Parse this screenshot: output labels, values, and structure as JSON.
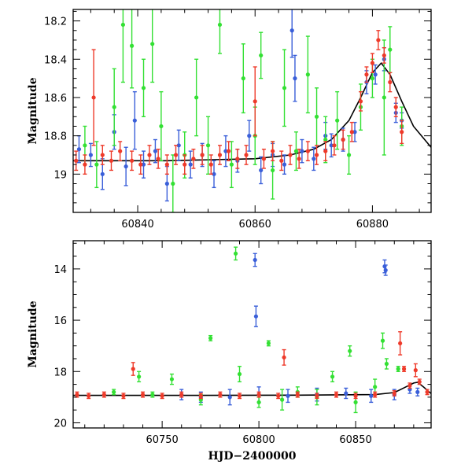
{
  "chart_data": [
    {
      "type": "scatter",
      "panel": "top",
      "title": "",
      "xlabel": "",
      "ylabel": "Magnitude",
      "xlim": [
        60829,
        60890
      ],
      "ylim": [
        19.2,
        18.14
      ],
      "y_inverted": true,
      "xticks": [
        60840,
        60860,
        60880
      ],
      "yticks": [
        18.2,
        18.4,
        18.6,
        18.8,
        19
      ],
      "ytick_labels": [
        "18.2",
        "18.4",
        "18.6",
        "18.8",
        "19"
      ],
      "grid": false,
      "legend": "none",
      "series": [
        {
          "color": "#3a5fd9",
          "points": [
            [
              60830,
              18.87,
              0.07
            ],
            [
              60832,
              18.9,
              0.06
            ],
            [
              60834,
              19.0,
              0.08
            ],
            [
              60836,
              18.78,
              0.09
            ],
            [
              60838,
              18.96,
              0.1
            ],
            [
              60839.5,
              18.72,
              0.15
            ],
            [
              60841,
              18.95,
              0.07
            ],
            [
              60843,
              18.88,
              0.06
            ],
            [
              60845,
              19.05,
              0.09
            ],
            [
              60847,
              18.85,
              0.08
            ],
            [
              60849,
              18.95,
              0.07
            ],
            [
              60851,
              18.9,
              0.06
            ],
            [
              60853,
              19.0,
              0.07
            ],
            [
              60855,
              18.88,
              0.08
            ],
            [
              60857,
              18.93,
              0.06
            ],
            [
              60859,
              18.8,
              0.08
            ],
            [
              60861,
              18.98,
              0.07
            ],
            [
              60863,
              18.9,
              0.06
            ],
            [
              60865,
              18.95,
              0.05
            ],
            [
              60866.3,
              18.25,
              0.14
            ],
            [
              60866.8,
              18.5,
              0.12
            ],
            [
              60868,
              18.88,
              0.06
            ],
            [
              60870,
              18.92,
              0.06
            ],
            [
              60872,
              18.8,
              0.07
            ],
            [
              60873,
              18.85,
              0.06
            ],
            [
              60875,
              18.82,
              0.06
            ],
            [
              60877,
              18.78,
              0.05
            ],
            [
              60879,
              18.52,
              0.06
            ],
            [
              60880.5,
              18.48,
              0.05
            ],
            [
              60882,
              18.4,
              0.06
            ],
            [
              60884,
              18.68,
              0.05
            ],
            [
              60885,
              18.72,
              0.04
            ]
          ]
        },
        {
          "color": "#33e033",
          "points": [
            [
              60831,
              18.85,
              0.1
            ],
            [
              60833,
              18.95,
              0.12
            ],
            [
              60836,
              18.65,
              0.2
            ],
            [
              60837.5,
              18.22,
              0.3
            ],
            [
              60839,
              18.33,
              0.22
            ],
            [
              60841,
              18.55,
              0.15
            ],
            [
              60842.5,
              18.32,
              0.2
            ],
            [
              60844,
              18.75,
              0.18
            ],
            [
              60846,
              19.05,
              0.15
            ],
            [
              60848,
              18.9,
              0.12
            ],
            [
              60850,
              18.6,
              0.2
            ],
            [
              60852,
              18.85,
              0.15
            ],
            [
              60854,
              18.22,
              0.15
            ],
            [
              60856,
              18.95,
              0.12
            ],
            [
              60858,
              18.5,
              0.18
            ],
            [
              60860,
              18.8,
              0.15
            ],
            [
              60861,
              18.38,
              0.12
            ],
            [
              60863,
              18.98,
              0.15
            ],
            [
              60865,
              18.55,
              0.2
            ],
            [
              60867,
              18.88,
              0.1
            ],
            [
              60869,
              18.48,
              0.2
            ],
            [
              60870.5,
              18.7,
              0.15
            ],
            [
              60872,
              18.82,
              0.12
            ],
            [
              60874,
              18.72,
              0.15
            ],
            [
              60876,
              18.9,
              0.1
            ],
            [
              60878,
              18.65,
              0.12
            ],
            [
              60880,
              18.5,
              0.1
            ],
            [
              60882,
              18.6,
              0.3
            ],
            [
              60883,
              18.35,
              0.12
            ],
            [
              60885,
              18.75,
              0.1
            ]
          ]
        },
        {
          "color": "#ee3a2a",
          "points": [
            [
              60829.5,
              18.93,
              0.05
            ],
            [
              60831,
              18.95,
              0.05
            ],
            [
              60832.5,
              18.6,
              0.25
            ],
            [
              60834,
              18.9,
              0.05
            ],
            [
              60835.5,
              18.93,
              0.05
            ],
            [
              60837,
              18.88,
              0.05
            ],
            [
              60839,
              18.93,
              0.05
            ],
            [
              60840.5,
              18.95,
              0.05
            ],
            [
              60842,
              18.9,
              0.05
            ],
            [
              60843.5,
              18.92,
              0.05
            ],
            [
              60845,
              18.95,
              0.05
            ],
            [
              60846.5,
              18.9,
              0.05
            ],
            [
              60848,
              18.95,
              0.05
            ],
            [
              60849.5,
              18.92,
              0.05
            ],
            [
              60851,
              18.9,
              0.05
            ],
            [
              60852.5,
              18.95,
              0.05
            ],
            [
              60854,
              18.9,
              0.05
            ],
            [
              60855.5,
              18.88,
              0.05
            ],
            [
              60857,
              18.92,
              0.05
            ],
            [
              60858.5,
              18.9,
              0.05
            ],
            [
              60860,
              18.62,
              0.18
            ],
            [
              60861.5,
              18.92,
              0.05
            ],
            [
              60863,
              18.88,
              0.05
            ],
            [
              60864.5,
              18.93,
              0.05
            ],
            [
              60866,
              18.9,
              0.05
            ],
            [
              60867.5,
              18.92,
              0.05
            ],
            [
              60869,
              18.88,
              0.05
            ],
            [
              60870.5,
              18.9,
              0.05
            ],
            [
              60872,
              18.88,
              0.05
            ],
            [
              60873.5,
              18.85,
              0.05
            ],
            [
              60875,
              18.82,
              0.05
            ],
            [
              60876.5,
              18.78,
              0.05
            ],
            [
              60878,
              18.62,
              0.05
            ],
            [
              60879,
              18.48,
              0.04
            ],
            [
              60880,
              18.42,
              0.05
            ],
            [
              60881,
              18.3,
              0.05
            ],
            [
              60882,
              18.38,
              0.04
            ],
            [
              60883,
              18.52,
              0.05
            ],
            [
              60884,
              18.65,
              0.05
            ],
            [
              60885,
              18.78,
              0.06
            ]
          ]
        }
      ],
      "model_curve": {
        "color": "#000000",
        "x": [
          60829,
          60845,
          60860,
          60866,
          60870,
          60873,
          60876,
          60878,
          60880,
          60881.5,
          60883,
          60885,
          60887,
          60890
        ],
        "y": [
          18.93,
          18.93,
          18.92,
          18.9,
          18.87,
          18.82,
          18.72,
          18.6,
          18.47,
          18.42,
          18.48,
          18.62,
          18.75,
          18.86
        ]
      }
    },
    {
      "type": "scatter",
      "panel": "bottom",
      "title": "",
      "xlabel": "HJD−2400000",
      "ylabel": "Magnitude",
      "xlim": [
        60704,
        60889
      ],
      "ylim": [
        20.2,
        12.9
      ],
      "y_inverted": true,
      "xticks": [
        60750,
        60800,
        60850
      ],
      "yticks": [
        14,
        16,
        18,
        20
      ],
      "grid": false,
      "legend": "none",
      "series": [
        {
          "color": "#3a5fd9",
          "points": [
            [
              60798,
              13.65,
              0.25
            ],
            [
              60798.5,
              15.85,
              0.4
            ],
            [
              60865,
              13.9,
              0.25
            ],
            [
              60865.5,
              14.05,
              0.2
            ],
            [
              60760,
              18.9,
              0.2
            ],
            [
              60770,
              19.0,
              0.2
            ],
            [
              60785,
              19.0,
              0.3
            ],
            [
              60800,
              18.9,
              0.3
            ],
            [
              60815,
              18.95,
              0.25
            ],
            [
              60830,
              18.9,
              0.25
            ],
            [
              60845,
              18.85,
              0.2
            ],
            [
              60858,
              18.95,
              0.25
            ],
            [
              60870,
              18.9,
              0.2
            ],
            [
              60878,
              18.7,
              0.15
            ],
            [
              60882,
              18.8,
              0.15
            ]
          ]
        },
        {
          "color": "#33e033",
          "points": [
            [
              60788,
              13.4,
              0.25
            ],
            [
              60775,
              16.7,
              0.1
            ],
            [
              60805,
              16.9,
              0.1
            ],
            [
              60838,
              18.2,
              0.2
            ],
            [
              60847,
              17.2,
              0.2
            ],
            [
              60864,
              16.8,
              0.3
            ],
            [
              60866,
              17.7,
              0.2
            ],
            [
              60872,
              17.9,
              0.1
            ],
            [
              60738,
              18.2,
              0.2
            ],
            [
              60755,
              18.3,
              0.2
            ],
            [
              60790,
              18.1,
              0.3
            ],
            [
              60812,
              19.1,
              0.4
            ],
            [
              60830,
              19.0,
              0.3
            ],
            [
              60850,
              19.2,
              0.4
            ],
            [
              60860,
              18.6,
              0.3
            ],
            [
              60725,
              18.8,
              0.1
            ],
            [
              60745,
              18.9,
              0.1
            ],
            [
              60770,
              19.1,
              0.2
            ],
            [
              60800,
              19.2,
              0.2
            ],
            [
              60820,
              18.8,
              0.2
            ]
          ]
        },
        {
          "color": "#ee3a2a",
          "points": [
            [
              60735,
              17.9,
              0.25
            ],
            [
              60813,
              17.45,
              0.3
            ],
            [
              60873,
              16.9,
              0.45
            ],
            [
              60881,
              17.95,
              0.25
            ],
            [
              60875,
              17.9,
              0.1
            ],
            [
              60706,
              18.9,
              0.1
            ],
            [
              60712,
              18.95,
              0.1
            ],
            [
              60720,
              18.9,
              0.1
            ],
            [
              60730,
              18.95,
              0.1
            ],
            [
              60740,
              18.9,
              0.1
            ],
            [
              60750,
              18.95,
              0.1
            ],
            [
              60760,
              18.9,
              0.1
            ],
            [
              60770,
              18.95,
              0.1
            ],
            [
              60780,
              18.9,
              0.1
            ],
            [
              60790,
              18.95,
              0.1
            ],
            [
              60800,
              18.9,
              0.1
            ],
            [
              60810,
              18.95,
              0.1
            ],
            [
              60820,
              18.9,
              0.1
            ],
            [
              60830,
              18.95,
              0.1
            ],
            [
              60840,
              18.9,
              0.1
            ],
            [
              60850,
              18.95,
              0.1
            ],
            [
              60860,
              18.9,
              0.1
            ],
            [
              60870,
              18.85,
              0.1
            ],
            [
              60878,
              18.55,
              0.1
            ],
            [
              60883,
              18.4,
              0.1
            ],
            [
              60887,
              18.8,
              0.1
            ]
          ]
        }
      ],
      "model_curve": {
        "color": "#000000",
        "x": [
          60704,
          60760,
          60820,
          60860,
          60870,
          60876,
          60880,
          60882,
          60885,
          60889
        ],
        "y": [
          18.93,
          18.93,
          18.92,
          18.9,
          18.82,
          18.6,
          18.45,
          18.42,
          18.6,
          18.86
        ]
      }
    }
  ]
}
